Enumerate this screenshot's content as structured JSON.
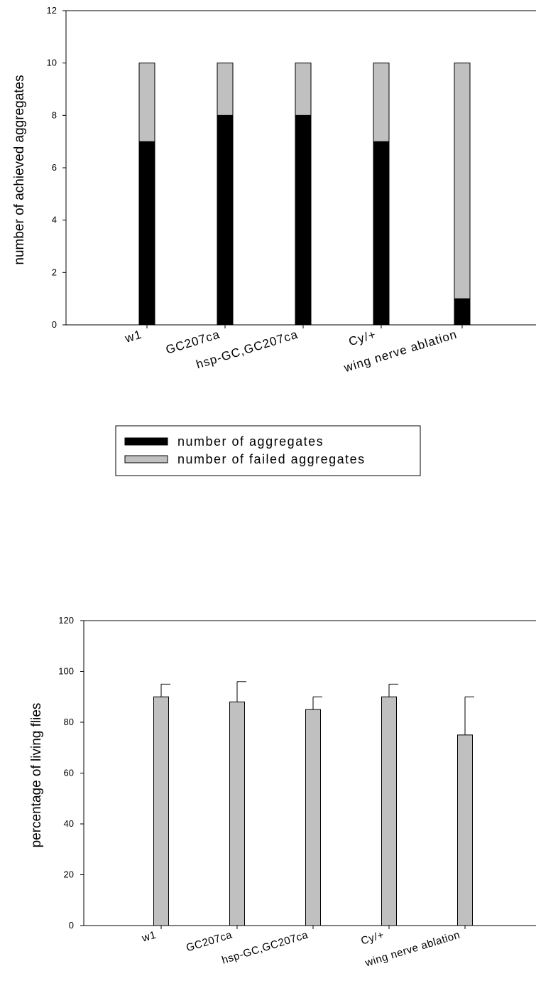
{
  "chart_data": [
    {
      "type": "bar",
      "stacked": true,
      "categories": [
        "w1",
        "GC207ca",
        "hsp-GC,GC207ca",
        "Cy/+",
        "wing nerve ablation"
      ],
      "series": [
        {
          "name": "number of aggregates",
          "values": [
            7,
            8,
            8,
            7,
            1
          ],
          "color": "#000000"
        },
        {
          "name": "number of failed aggregates",
          "values": [
            3,
            2,
            2,
            3,
            9
          ],
          "color": "#c0c0c0"
        }
      ],
      "ylabel": "number of achieved aggregates",
      "ylim": [
        0,
        12
      ],
      "yticks": [
        0,
        2,
        4,
        6,
        8,
        10,
        12
      ],
      "legend_position": "bottom"
    },
    {
      "type": "bar",
      "categories": [
        "w1",
        "GC207ca",
        "hsp-GC,GC207ca",
        "Cy/+",
        "wing nerve ablation"
      ],
      "series": [
        {
          "values": [
            90,
            88,
            85,
            90,
            75
          ],
          "error": [
            5,
            8,
            5,
            5,
            15
          ],
          "color": "#c0c0c0"
        }
      ],
      "ylabel": "percentage  of  living  flies",
      "ylim": [
        0,
        120
      ],
      "yticks": [
        0,
        20,
        40,
        60,
        80,
        100,
        120
      ]
    }
  ]
}
